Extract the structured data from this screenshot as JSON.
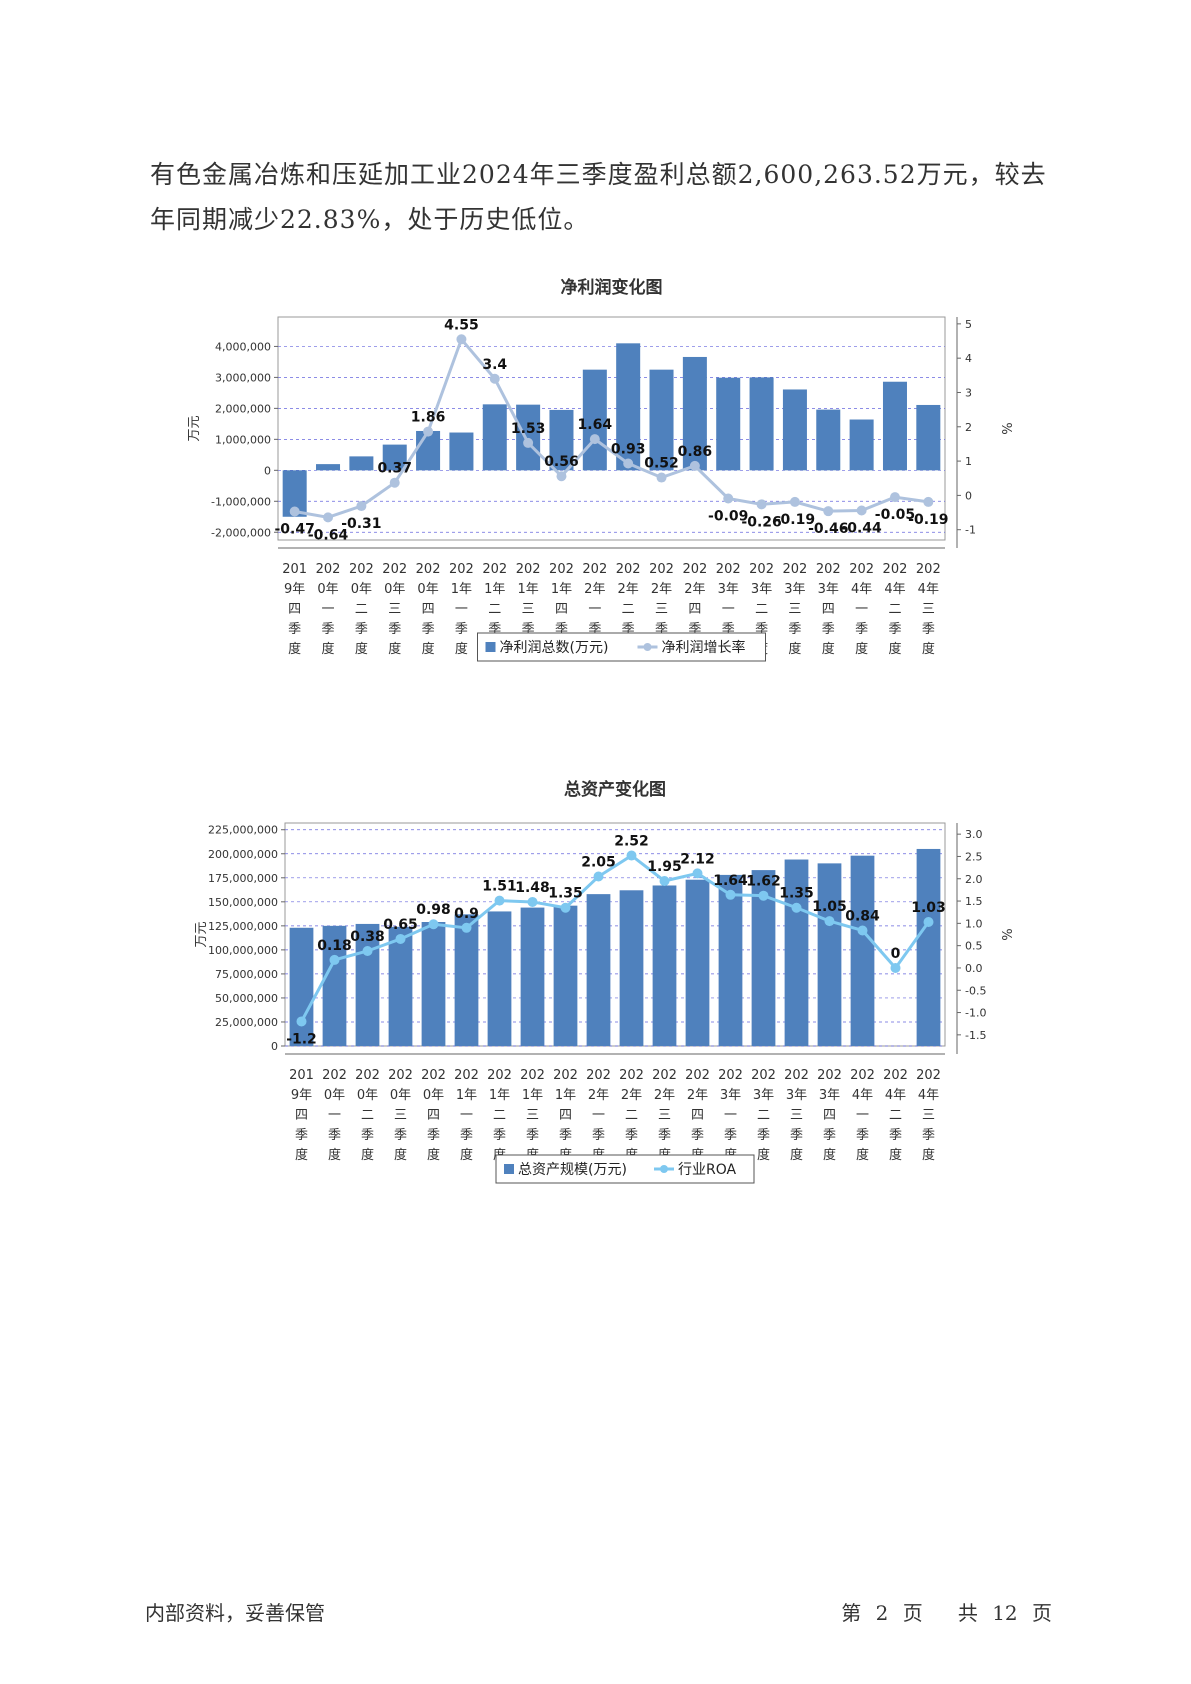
{
  "paragraph": "有色金属冶炼和压延加工业2024年三季度盈利总额2,600,263.52万元，较去年同期减少22.83%，处于历史低位。",
  "charts": [
    {
      "type": "bar+line",
      "title": "净利润变化图",
      "ylabel_left": "万元",
      "ylabel_right": "%",
      "left_ticks": [
        "4,000,000",
        "3,000,000",
        "2,000,000",
        "1,000,000",
        "0",
        "-1,000,000",
        "-2,000,000"
      ],
      "left_tick_values": [
        4000000,
        3000000,
        2000000,
        1000000,
        0,
        -1000000,
        -2000000
      ],
      "right_ticks": [
        "5",
        "4",
        "3",
        "2",
        "1",
        "0",
        "-1"
      ],
      "right_tick_values": [
        5,
        4,
        3,
        2,
        1,
        0,
        -1
      ],
      "left_range": [
        -2250000,
        4950000
      ],
      "right_range": [
        -1.3,
        5.2
      ],
      "categories": [
        [
          "201",
          "9年",
          "四",
          "季",
          "度"
        ],
        [
          "202",
          "0年",
          "一",
          "季",
          "度"
        ],
        [
          "202",
          "0年",
          "二",
          "季",
          "度"
        ],
        [
          "202",
          "0年",
          "三",
          "季",
          "度"
        ],
        [
          "202",
          "0年",
          "四",
          "季",
          "度"
        ],
        [
          "202",
          "1年",
          "一",
          "季",
          "度"
        ],
        [
          "202",
          "1年",
          "二",
          "季",
          "度"
        ],
        [
          "202",
          "1年",
          "三",
          "季",
          "度"
        ],
        [
          "202",
          "1年",
          "四",
          "季",
          "度"
        ],
        [
          "202",
          "2年",
          "一",
          "季",
          "度"
        ],
        [
          "202",
          "2年",
          "二",
          "季",
          "度"
        ],
        [
          "202",
          "2年",
          "三",
          "季",
          "度"
        ],
        [
          "202",
          "2年",
          "四",
          "季",
          "度"
        ],
        [
          "202",
          "3年",
          "一",
          "季",
          "度"
        ],
        [
          "202",
          "3年",
          "二",
          "季",
          "度"
        ],
        [
          "202",
          "3年",
          "三",
          "季",
          "度"
        ],
        [
          "202",
          "3年",
          "四",
          "季",
          "度"
        ],
        [
          "202",
          "4年",
          "一",
          "季",
          "度"
        ],
        [
          "202",
          "4年",
          "二",
          "季",
          "度"
        ],
        [
          "202",
          "4年",
          "三",
          "季",
          "度"
        ]
      ],
      "bars": [
        -1500000,
        200000,
        450000,
        830000,
        1270000,
        1220000,
        2130000,
        2120000,
        1950000,
        3250000,
        4100000,
        3250000,
        3660000,
        2990000,
        3000000,
        2610000,
        1960000,
        1640000,
        2860000,
        2110000
      ],
      "line": [
        -0.47,
        -0.64,
        -0.31,
        0.37,
        1.86,
        4.55,
        3.4,
        1.53,
        0.56,
        1.64,
        0.93,
        0.52,
        0.86,
        -0.09,
        -0.26,
        -0.19,
        -0.46,
        -0.44,
        -0.05,
        -0.19
      ],
      "line_labels": [
        "-0.47",
        "-0.64",
        "-0.31",
        "0.37",
        "1.86",
        "4.55",
        "3.4",
        "1.53",
        "0.56",
        "1.64",
        "0.93",
        "0.52",
        "0.86",
        "-0.09",
        "-0.26",
        "-0.19",
        "-0.46",
        "-0.44",
        "-0.05",
        "-0.19"
      ],
      "legend": {
        "bar": "净利润总数(万元)",
        "line": "净利润增长率"
      },
      "colors": {
        "bar": "#4f81bd",
        "line": "#aec2de",
        "grid": "#6666dd"
      }
    },
    {
      "type": "bar+line",
      "title": "总资产变化图",
      "ylabel_left": "万元",
      "ylabel_right": "%",
      "left_ticks": [
        "225,000,000",
        "200,000,000",
        "175,000,000",
        "150,000,000",
        "125,000,000",
        "100,000,000",
        "75,000,000",
        "50,000,000",
        "25,000,000",
        "0"
      ],
      "left_tick_values": [
        225000000,
        200000000,
        175000000,
        150000000,
        125000000,
        100000000,
        75000000,
        50000000,
        25000000,
        0
      ],
      "right_ticks": [
        "3.0",
        "2.5",
        "2.0",
        "1.5",
        "1.0",
        "0.5",
        "0.0",
        "-0.5",
        "-1.0",
        "-1.5"
      ],
      "right_tick_values": [
        3.0,
        2.5,
        2.0,
        1.5,
        1.0,
        0.5,
        0.0,
        -0.5,
        -1.0,
        -1.5
      ],
      "left_range": [
        0,
        232000000
      ],
      "right_range": [
        -1.75,
        3.25
      ],
      "categories": [
        [
          "201",
          "9年",
          "四",
          "季",
          "度"
        ],
        [
          "202",
          "0年",
          "一",
          "季",
          "度"
        ],
        [
          "202",
          "0年",
          "二",
          "季",
          "度"
        ],
        [
          "202",
          "0年",
          "三",
          "季",
          "度"
        ],
        [
          "202",
          "0年",
          "四",
          "季",
          "度"
        ],
        [
          "202",
          "1年",
          "一",
          "季",
          "度"
        ],
        [
          "202",
          "1年",
          "二",
          "季",
          "度"
        ],
        [
          "202",
          "1年",
          "三",
          "季",
          "度"
        ],
        [
          "202",
          "1年",
          "四",
          "季",
          "度"
        ],
        [
          "202",
          "2年",
          "一",
          "季",
          "度"
        ],
        [
          "202",
          "2年",
          "二",
          "季",
          "度"
        ],
        [
          "202",
          "2年",
          "三",
          "季",
          "度"
        ],
        [
          "202",
          "2年",
          "四",
          "季",
          "度"
        ],
        [
          "202",
          "3年",
          "一",
          "季",
          "度"
        ],
        [
          "202",
          "3年",
          "二",
          "季",
          "度"
        ],
        [
          "202",
          "3年",
          "三",
          "季",
          "度"
        ],
        [
          "202",
          "3年",
          "四",
          "季",
          "度"
        ],
        [
          "202",
          "4年",
          "一",
          "季",
          "度"
        ],
        [
          "202",
          "4年",
          "二",
          "季",
          "度"
        ],
        [
          "202",
          "4年",
          "三",
          "季",
          "度"
        ]
      ],
      "bars": [
        123000000,
        125000000,
        127000000,
        124000000,
        129000000,
        137000000,
        140000000,
        144000000,
        146000000,
        158000000,
        162000000,
        167000000,
        173000000,
        178000000,
        183000000,
        194000000,
        190000000,
        198000000,
        null,
        205000000
      ],
      "line": [
        -1.2,
        0.18,
        0.38,
        0.65,
        0.98,
        0.9,
        1.51,
        1.48,
        1.35,
        2.05,
        2.52,
        1.95,
        2.12,
        1.64,
        1.62,
        1.35,
        1.05,
        0.84,
        0,
        1.03
      ],
      "line_labels": [
        "-1.2",
        "0.18",
        "0.38",
        "0.65",
        "0.98",
        "0.9",
        "1.51",
        "1.48",
        "1.35",
        "2.05",
        "2.52",
        "1.95",
        "2.12",
        "1.64",
        "1.62",
        "1.35",
        "1.05",
        "0.84",
        "0",
        "1.03"
      ],
      "legend": {
        "bar": "总资产规模(万元)",
        "line": "行业ROA"
      },
      "colors": {
        "bar": "#4f81bd",
        "line": "#7ec8f0",
        "grid": "#6666dd"
      }
    }
  ],
  "footer": {
    "left": "内部资料，妥善保管",
    "page_prefix": "第",
    "page_current": "2",
    "page_unit": "页",
    "total_prefix": "共",
    "page_total": "12",
    "total_unit": "页"
  }
}
